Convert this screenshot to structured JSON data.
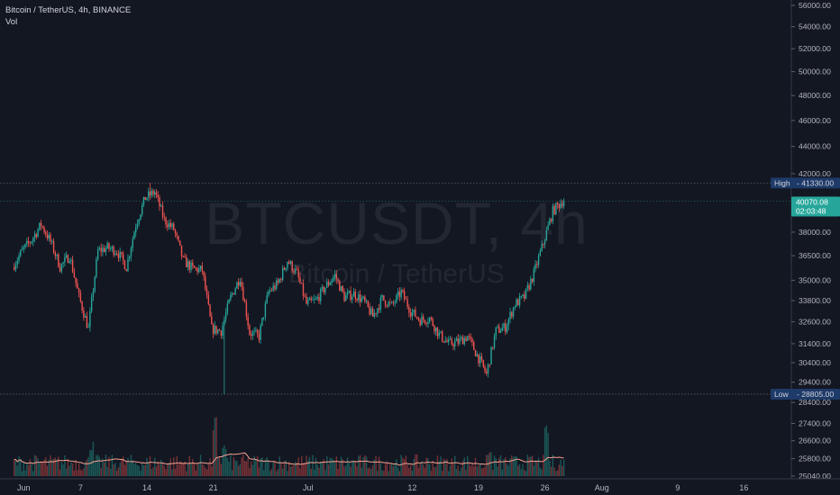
{
  "legend": {
    "title": "Bitcoin / TetherUS, 4h, BINANCE",
    "volume": "Vol"
  },
  "watermark": {
    "symbol": "BTCUSDT, 4h",
    "description": "Bitcoin / TetherUS"
  },
  "colors": {
    "background": "#131722",
    "up": "#26a69a",
    "down": "#ef5350",
    "text": "#b2b5be",
    "grid": "#363a45",
    "badge_high_low": "#1e3a68",
    "ma_line": "#f5a18f"
  },
  "chart_data": {
    "type": "candlestick",
    "title": "Bitcoin / TetherUS, 4h, BINANCE",
    "y_axis": {
      "scale": "log",
      "ticks": [
        56000,
        54000,
        52000,
        50000,
        48000,
        46000,
        44000,
        42000,
        38000,
        36500,
        35000,
        33800,
        32600,
        31400,
        30400,
        29400,
        28400,
        27400,
        26600,
        25800,
        25040
      ],
      "labels": [
        "56000.00",
        "54000.00",
        "52000.00",
        "50000.00",
        "48000.00",
        "46000.00",
        "44000.00",
        "42000.00",
        "38000.00",
        "36500.00",
        "35000.00",
        "33800.00",
        "32600.00",
        "31400.00",
        "30400.00",
        "29400.00",
        "28400.00",
        "27400.00",
        "26600.00",
        "25800.00",
        "25040.00"
      ]
    },
    "x_axis": {
      "ticks": [
        "Jun",
        "7",
        "14",
        "21",
        "Jul",
        "12",
        "19",
        "26",
        "Aug",
        "9",
        "16"
      ]
    },
    "high": {
      "label": "High",
      "value": 41330,
      "text": "41330.00"
    },
    "low": {
      "label": "Low",
      "value": 28805,
      "text": "28805.00"
    },
    "last": {
      "value": 40070.08,
      "text": "40070.08",
      "countdown": "02:03:48"
    },
    "anchors": [
      [
        "2021-05-31",
        35800
      ],
      [
        "2021-06-01",
        36800
      ],
      [
        "2021-06-02",
        37500
      ],
      [
        "2021-06-03",
        38500
      ],
      [
        "2021-06-04",
        37400
      ],
      [
        "2021-06-05",
        35800
      ],
      [
        "2021-06-06",
        36500
      ],
      [
        "2021-06-07",
        34000
      ],
      [
        "2021-06-08",
        32200
      ],
      [
        "2021-06-09",
        36800
      ],
      [
        "2021-06-10",
        37000
      ],
      [
        "2021-06-11",
        36800
      ],
      [
        "2021-06-12",
        35800
      ],
      [
        "2021-06-13",
        38500
      ],
      [
        "2021-06-14",
        40300
      ],
      [
        "2021-06-15",
        40700
      ],
      [
        "2021-06-16",
        38800
      ],
      [
        "2021-06-17",
        38200
      ],
      [
        "2021-06-18",
        36200
      ],
      [
        "2021-06-19",
        35700
      ],
      [
        "2021-06-20",
        35600
      ],
      [
        "2021-06-21",
        32200
      ],
      [
        "2021-06-22",
        32100
      ],
      [
        "2021-06-23",
        34000
      ],
      [
        "2021-06-24",
        35200
      ],
      [
        "2021-06-25",
        32000
      ],
      [
        "2021-06-26",
        31800
      ],
      [
        "2021-06-27",
        34300
      ],
      [
        "2021-06-28",
        34800
      ],
      [
        "2021-06-29",
        36200
      ],
      [
        "2021-06-30",
        35400
      ],
      [
        "2021-07-01",
        33600
      ],
      [
        "2021-07-02",
        33800
      ],
      [
        "2021-07-03",
        34600
      ],
      [
        "2021-07-04",
        35300
      ],
      [
        "2021-07-05",
        34000
      ],
      [
        "2021-07-06",
        34200
      ],
      [
        "2021-07-07",
        33800
      ],
      [
        "2021-07-08",
        32900
      ],
      [
        "2021-07-09",
        33900
      ],
      [
        "2021-07-10",
        33500
      ],
      [
        "2021-07-11",
        34300
      ],
      [
        "2021-07-12",
        33200
      ],
      [
        "2021-07-13",
        32700
      ],
      [
        "2021-07-14",
        32800
      ],
      [
        "2021-07-15",
        31900
      ],
      [
        "2021-07-16",
        31400
      ],
      [
        "2021-07-17",
        31500
      ],
      [
        "2021-07-18",
        31800
      ],
      [
        "2021-07-19",
        30800
      ],
      [
        "2021-07-20",
        29800
      ],
      [
        "2021-07-21",
        32100
      ],
      [
        "2021-07-22",
        32300
      ],
      [
        "2021-07-23",
        33600
      ],
      [
        "2021-07-24",
        34000
      ],
      [
        "2021-07-25",
        35400
      ],
      [
        "2021-07-26",
        37300
      ],
      [
        "2021-07-27",
        39400
      ],
      [
        "2021-07-28",
        40070
      ]
    ],
    "volume": {
      "baseline_label": "25040.00",
      "spikes": [
        [
          "2021-06-08",
          0.6
        ],
        [
          "2021-06-21",
          1.0
        ],
        [
          "2021-06-22",
          0.55
        ],
        [
          "2021-07-20",
          0.45
        ],
        [
          "2021-07-26",
          0.85
        ]
      ]
    }
  }
}
